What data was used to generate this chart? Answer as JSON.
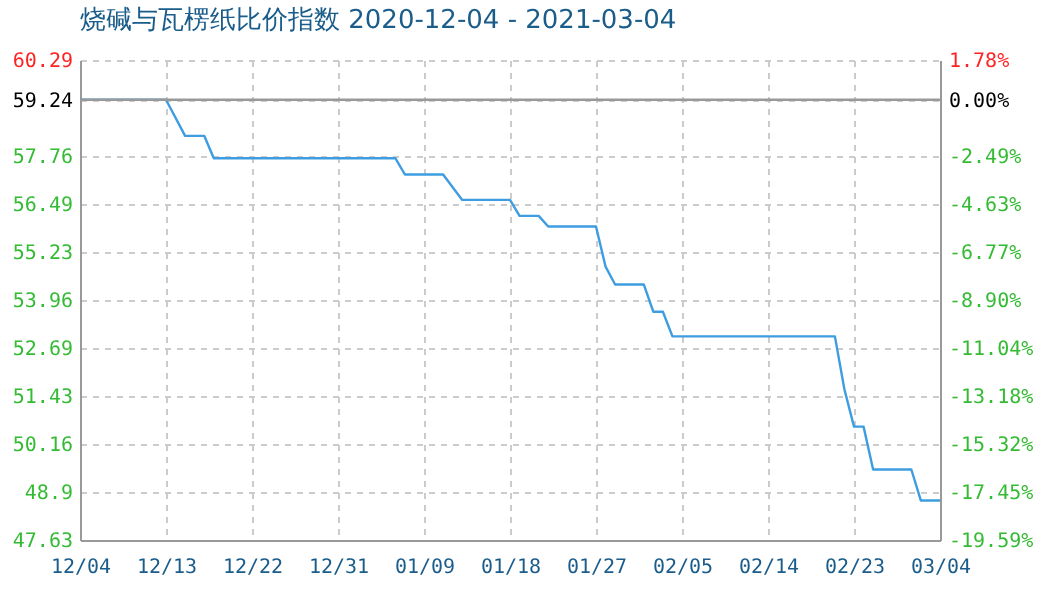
{
  "chart_data": {
    "type": "line",
    "title": "烧碱与瓦楞纸比价指数 2020-12-04 - 2021-03-04",
    "x": [
      "2020-12-04",
      "2020-12-13",
      "2020-12-15",
      "2020-12-17",
      "2020-12-18",
      "2021-01-06",
      "2021-01-07",
      "2021-01-11",
      "2021-01-13",
      "2021-01-18",
      "2021-01-19",
      "2021-01-21",
      "2021-01-22",
      "2021-01-27",
      "2021-01-28",
      "2021-01-29",
      "2021-02-01",
      "2021-02-02",
      "2021-02-03",
      "2021-02-04",
      "2021-02-21",
      "2021-02-22",
      "2021-02-23",
      "2021-02-24",
      "2021-02-25",
      "2021-03-01",
      "2021-03-02",
      "2021-03-04"
    ],
    "series": [
      {
        "color": "#3d9de0",
        "values": [
          59.24,
          59.24,
          58.29,
          58.29,
          57.7,
          57.7,
          57.27,
          57.27,
          56.6,
          56.6,
          56.18,
          56.18,
          55.9,
          55.9,
          54.84,
          54.37,
          54.37,
          53.65,
          53.65,
          53.0,
          53.0,
          51.6,
          50.62,
          50.62,
          49.49,
          49.49,
          48.67,
          48.67
        ]
      }
    ],
    "xlim": [
      "2020-12-04",
      "2021-03-04"
    ],
    "xticks": [
      {
        "value": "2020-12-04",
        "label": "12/04"
      },
      {
        "value": "2020-12-13",
        "label": "12/13"
      },
      {
        "value": "2020-12-22",
        "label": "12/22"
      },
      {
        "value": "2020-12-31",
        "label": "12/31"
      },
      {
        "value": "2021-01-09",
        "label": "01/09"
      },
      {
        "value": "2021-01-18",
        "label": "01/18"
      },
      {
        "value": "2021-01-27",
        "label": "01/27"
      },
      {
        "value": "2021-02-05",
        "label": "02/05"
      },
      {
        "value": "2021-02-14",
        "label": "02/14"
      },
      {
        "value": "2021-02-23",
        "label": "02/23"
      },
      {
        "value": "2021-03-04",
        "label": "03/04"
      }
    ],
    "ylim": [
      47.63,
      60.29
    ],
    "yticks": [
      47.63,
      48.9,
      50.16,
      51.43,
      52.69,
      53.96,
      55.23,
      56.49,
      57.76,
      59.24,
      60.29
    ],
    "y2lim": [
      -19.59,
      1.78
    ],
    "y2ticks": [
      {
        "value": -19.59,
        "label": "-19.59%"
      },
      {
        "value": -17.45,
        "label": "-17.45%"
      },
      {
        "value": -15.32,
        "label": "-15.32%"
      },
      {
        "value": -13.18,
        "label": "-13.18%"
      },
      {
        "value": -11.04,
        "label": "-11.04%"
      },
      {
        "value": -8.9,
        "label": "-8.90%"
      },
      {
        "value": -6.77,
        "label": "-6.77%"
      },
      {
        "value": -4.63,
        "label": "-4.63%"
      },
      {
        "value": -2.49,
        "label": "-2.49%"
      },
      {
        "value": 0,
        "label": "0.00%"
      },
      {
        "value": 1.78,
        "label": "1.78%"
      }
    ],
    "ref_lines": [
      {
        "axis": "y",
        "value": 59.24,
        "color": "#999999"
      }
    ],
    "grid": true,
    "marker": "none",
    "line_style": "solid"
  }
}
